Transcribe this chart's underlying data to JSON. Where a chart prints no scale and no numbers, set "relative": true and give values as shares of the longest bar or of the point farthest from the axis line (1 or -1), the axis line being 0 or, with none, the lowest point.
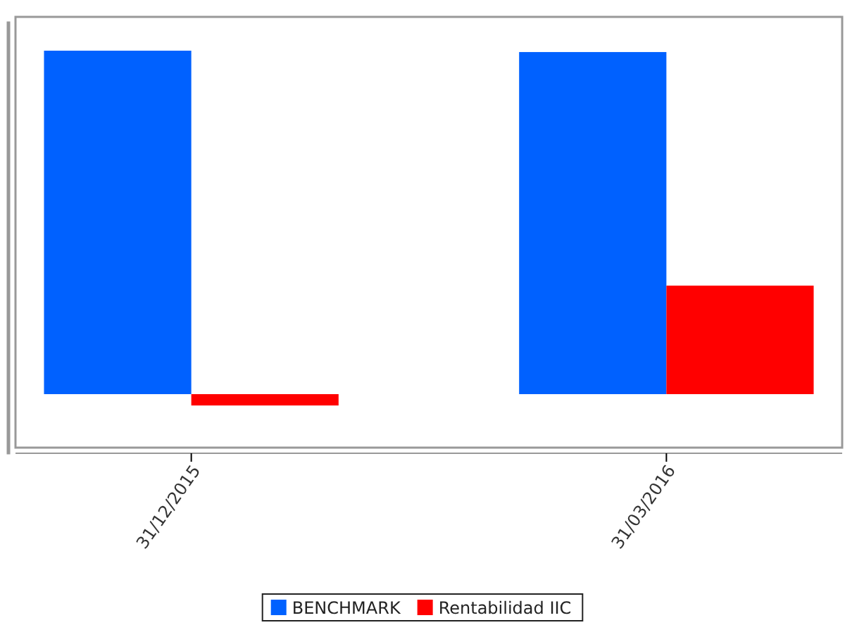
{
  "chart_data": {
    "type": "bar",
    "relative": true,
    "categories": [
      "31/12/2015",
      "31/03/2016"
    ],
    "series": [
      {
        "name": "BENCHMARK",
        "color": "#0061ff",
        "values": [
          1,
          0.996
        ]
      },
      {
        "name": "Rentabilidad IIC",
        "color": "#ff0000",
        "values": [
          -0.033,
          0.316
        ]
      }
    ],
    "legend": "bottom"
  }
}
